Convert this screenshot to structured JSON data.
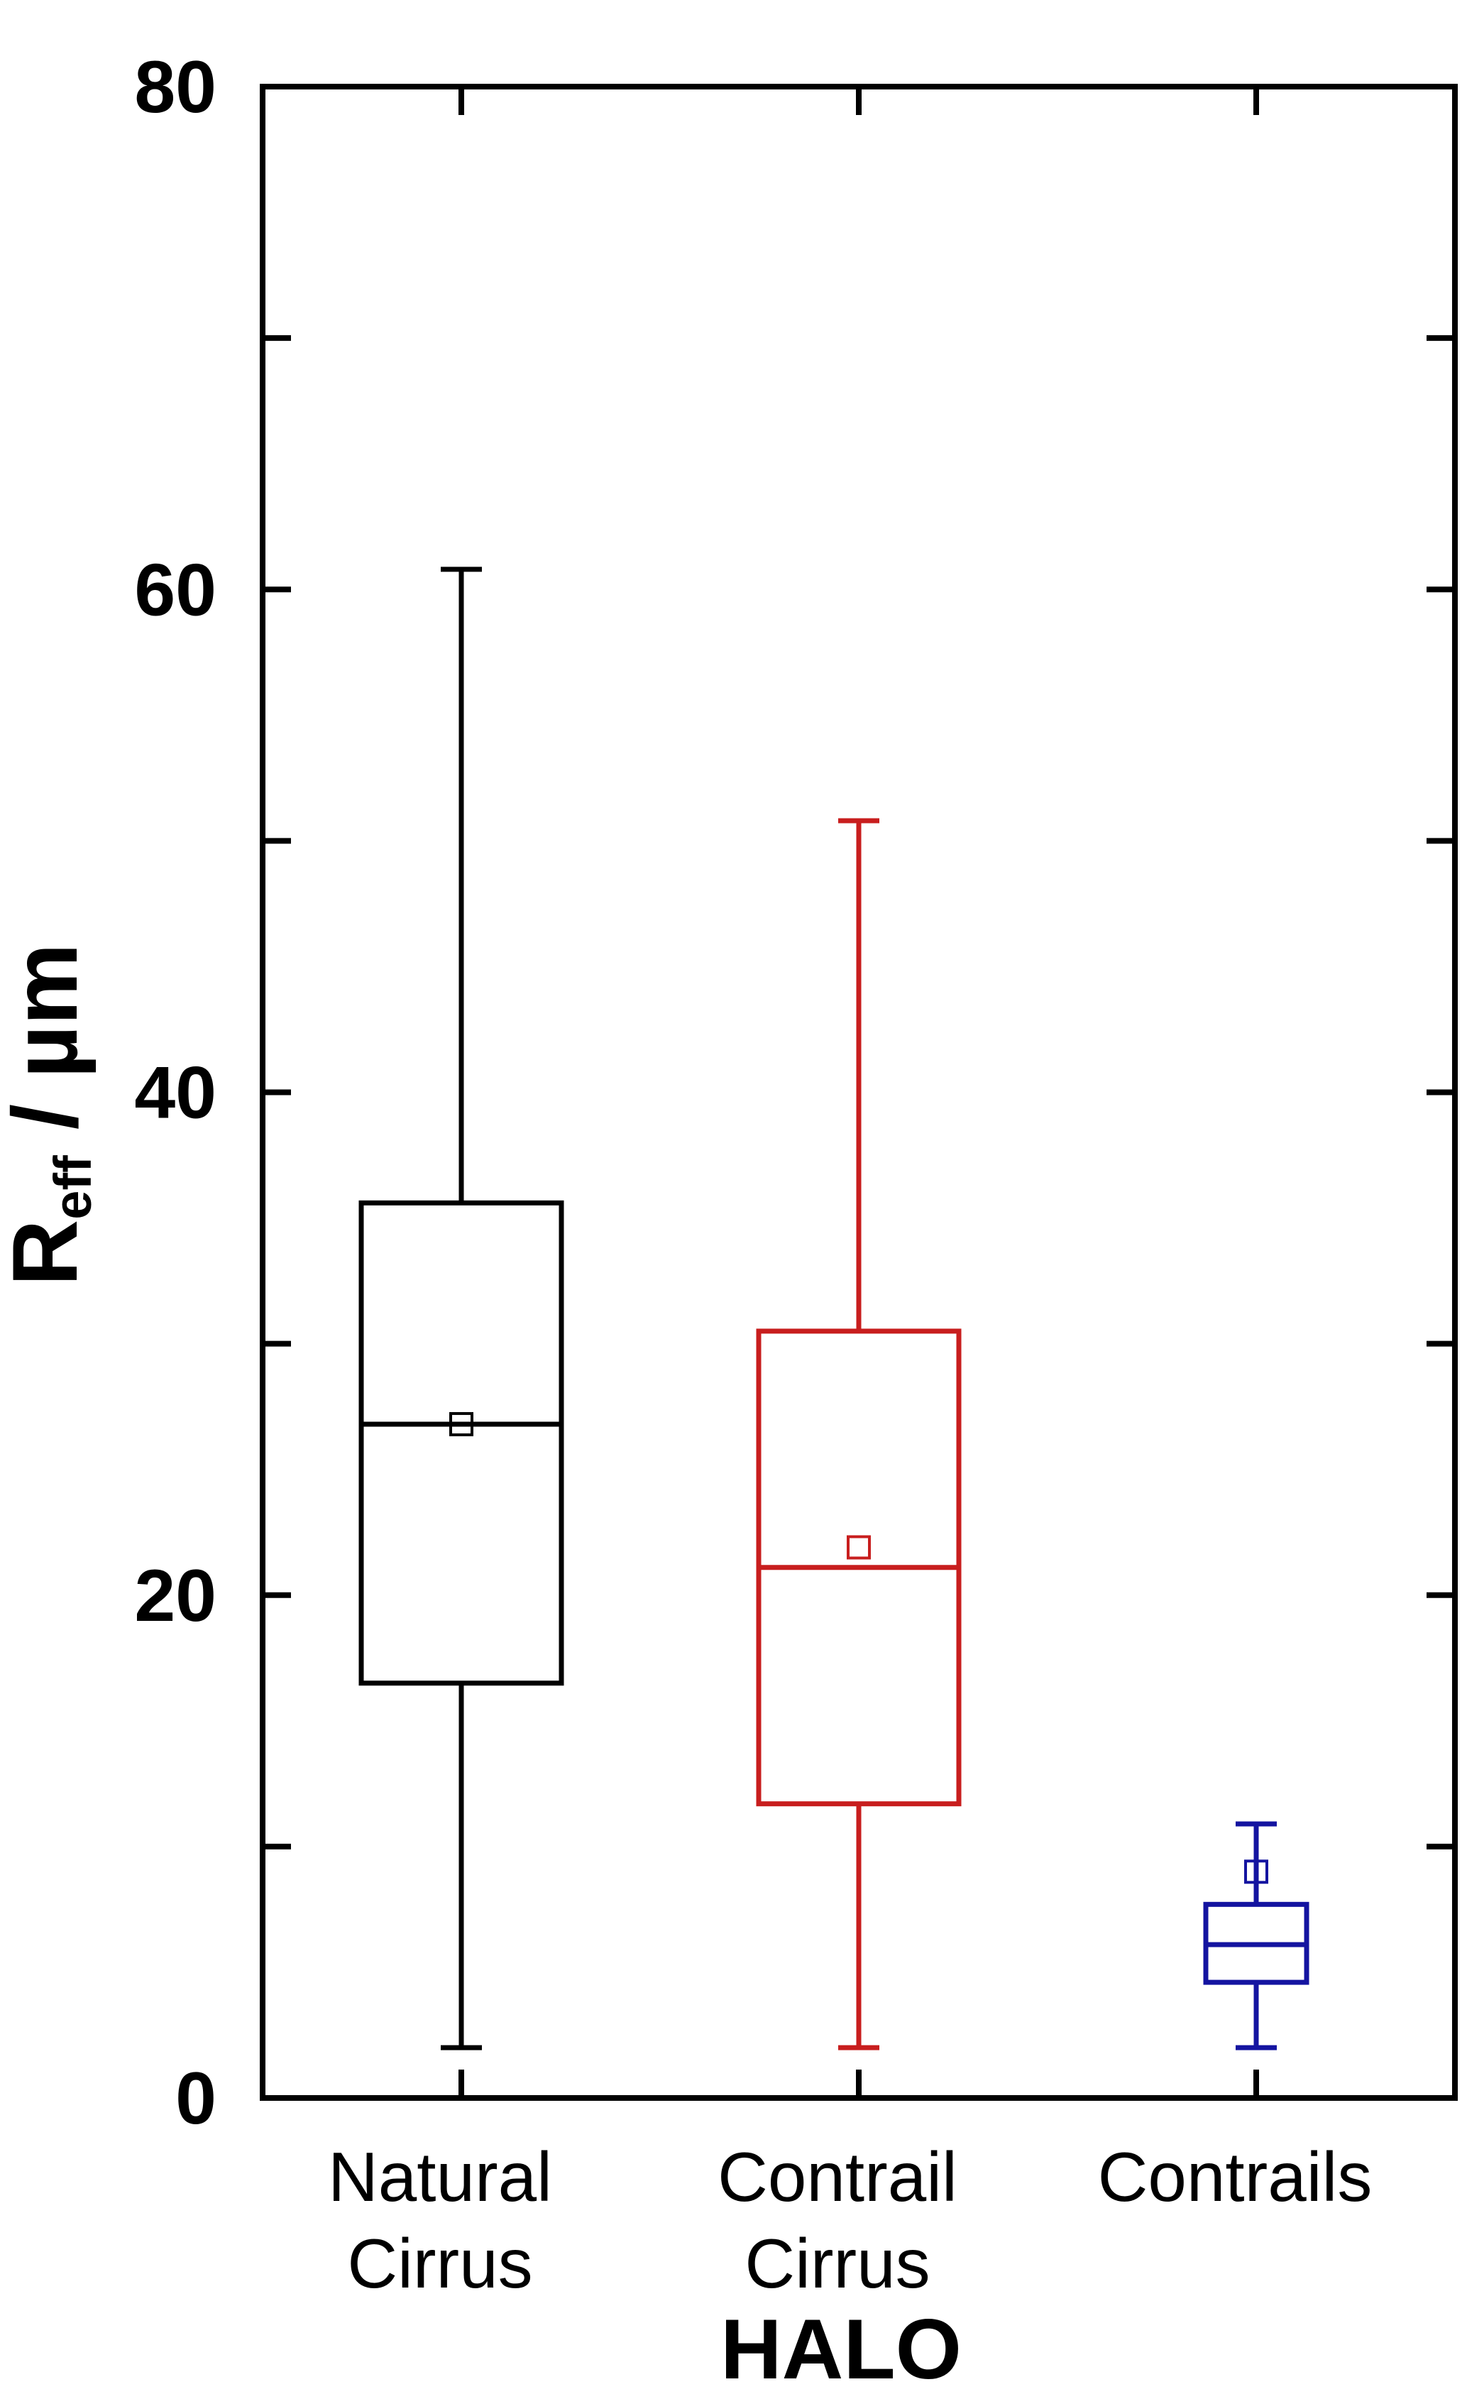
{
  "chart_data": {
    "type": "box",
    "categories": [
      {
        "lines": [
          "Natural",
          "Cirrus"
        ]
      },
      {
        "lines": [
          "Contrail",
          "Cirrus"
        ]
      },
      {
        "lines": [
          "Contrails"
        ]
      }
    ],
    "series": [
      {
        "color": "#000000",
        "min": 2,
        "q1": 16.5,
        "median": 26.8,
        "q3": 35.6,
        "max": 60.8,
        "mean": 26.8
      },
      {
        "color": "#c81e1e",
        "min": 2,
        "q1": 11.7,
        "median": 21.1,
        "q3": 30.5,
        "max": 50.8,
        "mean": 21.9
      },
      {
        "color": "#1414a0",
        "min": 2,
        "q1": 4.6,
        "median": 6.1,
        "q3": 7.7,
        "max": 10.9,
        "mean": 9.0
      }
    ],
    "y_ticks": [
      "0",
      "20",
      "40",
      "60",
      "80"
    ],
    "ylim": [
      0,
      80
    ],
    "ylabel_main": "R",
    "ylabel_sub": "eff",
    "ylabel_unit": " / µm",
    "xlabel": "HALO",
    "grid": false
  }
}
